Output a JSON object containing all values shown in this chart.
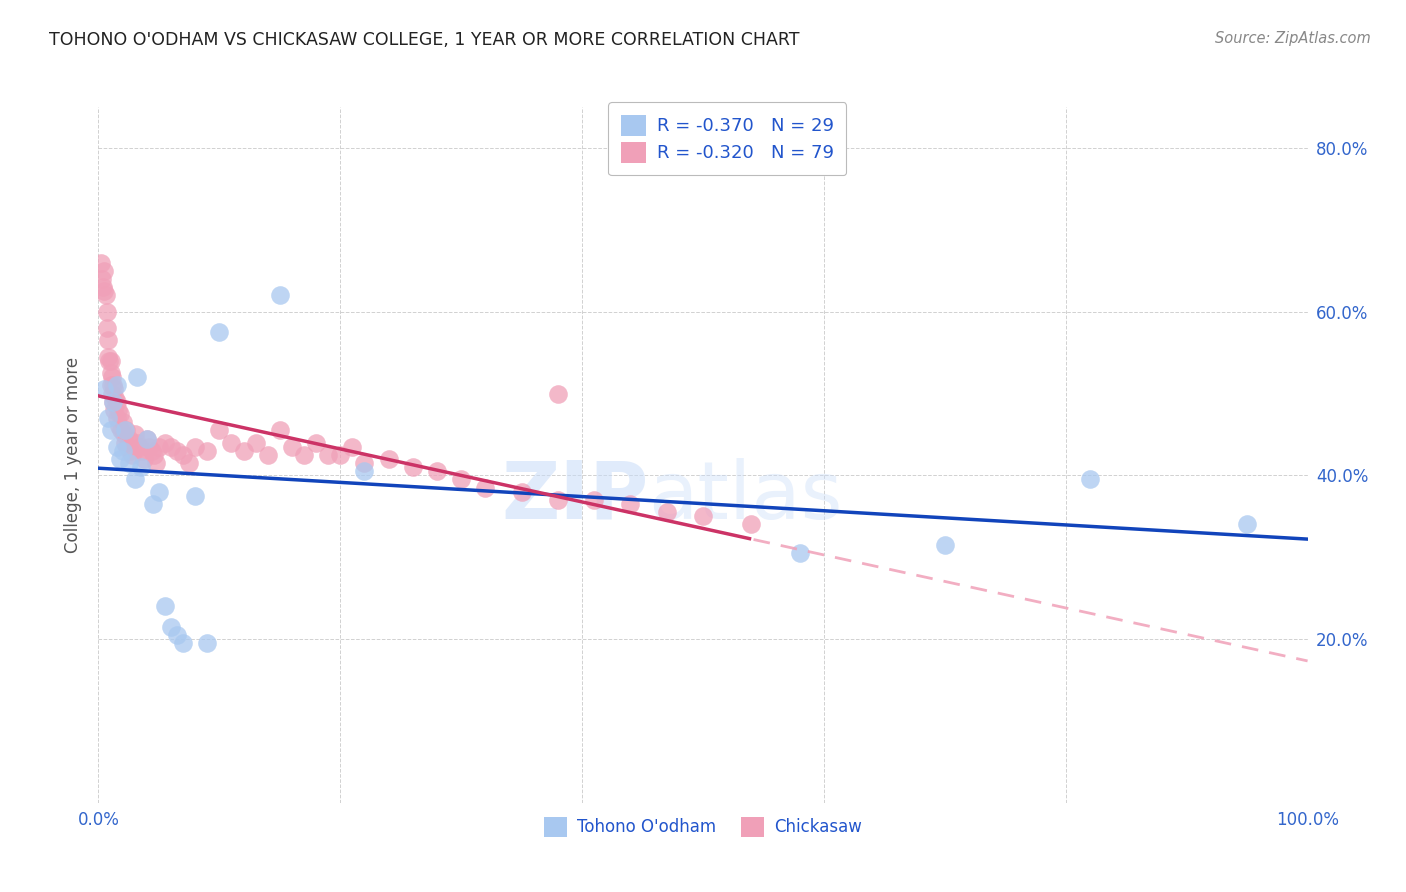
{
  "title": "TOHONO O'ODHAM VS CHICKASAW COLLEGE, 1 YEAR OR MORE CORRELATION CHART",
  "source": "Source: ZipAtlas.com",
  "ylabel": "College, 1 year or more",
  "xlim": [
    0,
    1.0
  ],
  "ylim": [
    0,
    0.85
  ],
  "xtick_vals": [
    0.0,
    0.2,
    0.4,
    0.6,
    0.8,
    1.0
  ],
  "ytick_vals": [
    0.0,
    0.2,
    0.4,
    0.6,
    0.8
  ],
  "legend_r1": "R = -0.370",
  "legend_n1": "N = 29",
  "legend_r2": "R = -0.320",
  "legend_n2": "N = 79",
  "color_blue": "#A8C8F0",
  "color_pink": "#F0A0B8",
  "color_blue_line": "#1144BB",
  "color_pink_line": "#CC3366",
  "color_pink_dashed": "#F0A0B8",
  "watermark_zip": "ZIP",
  "watermark_atlas": "atlas",
  "tohono_x": [
    0.005,
    0.008,
    0.01,
    0.012,
    0.015,
    0.015,
    0.018,
    0.02,
    0.022,
    0.025,
    0.03,
    0.032,
    0.035,
    0.04,
    0.045,
    0.05,
    0.055,
    0.06,
    0.065,
    0.07,
    0.08,
    0.09,
    0.1,
    0.15,
    0.22,
    0.58,
    0.7,
    0.82,
    0.95
  ],
  "tohono_y": [
    0.505,
    0.47,
    0.455,
    0.49,
    0.51,
    0.435,
    0.42,
    0.43,
    0.455,
    0.415,
    0.395,
    0.52,
    0.41,
    0.445,
    0.365,
    0.38,
    0.24,
    0.215,
    0.205,
    0.195,
    0.375,
    0.195,
    0.575,
    0.62,
    0.405,
    0.305,
    0.315,
    0.395,
    0.34
  ],
  "chickasaw_x": [
    0.002,
    0.003,
    0.004,
    0.005,
    0.005,
    0.006,
    0.007,
    0.007,
    0.008,
    0.008,
    0.009,
    0.01,
    0.01,
    0.01,
    0.011,
    0.011,
    0.012,
    0.012,
    0.013,
    0.013,
    0.014,
    0.015,
    0.015,
    0.016,
    0.017,
    0.018,
    0.019,
    0.02,
    0.021,
    0.022,
    0.023,
    0.024,
    0.025,
    0.026,
    0.028,
    0.03,
    0.032,
    0.034,
    0.036,
    0.038,
    0.04,
    0.042,
    0.044,
    0.046,
    0.048,
    0.05,
    0.055,
    0.06,
    0.065,
    0.07,
    0.075,
    0.08,
    0.09,
    0.1,
    0.11,
    0.12,
    0.13,
    0.14,
    0.15,
    0.16,
    0.17,
    0.18,
    0.19,
    0.2,
    0.21,
    0.22,
    0.24,
    0.26,
    0.28,
    0.3,
    0.32,
    0.35,
    0.38,
    0.41,
    0.44,
    0.47,
    0.5,
    0.54,
    0.38
  ],
  "chickasaw_y": [
    0.66,
    0.64,
    0.63,
    0.65,
    0.625,
    0.62,
    0.6,
    0.58,
    0.565,
    0.545,
    0.54,
    0.54,
    0.525,
    0.51,
    0.52,
    0.5,
    0.51,
    0.49,
    0.505,
    0.48,
    0.495,
    0.49,
    0.47,
    0.48,
    0.46,
    0.475,
    0.455,
    0.465,
    0.45,
    0.44,
    0.455,
    0.435,
    0.445,
    0.43,
    0.425,
    0.45,
    0.44,
    0.435,
    0.43,
    0.42,
    0.445,
    0.435,
    0.43,
    0.425,
    0.415,
    0.435,
    0.44,
    0.435,
    0.43,
    0.425,
    0.415,
    0.435,
    0.43,
    0.455,
    0.44,
    0.43,
    0.44,
    0.425,
    0.455,
    0.435,
    0.425,
    0.44,
    0.425,
    0.425,
    0.435,
    0.415,
    0.42,
    0.41,
    0.405,
    0.395,
    0.385,
    0.38,
    0.37,
    0.37,
    0.365,
    0.355,
    0.35,
    0.34,
    0.5
  ]
}
